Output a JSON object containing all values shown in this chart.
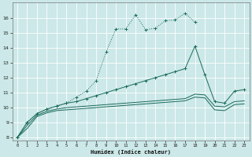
{
  "xlabel": "Humidex (Indice chaleur)",
  "background_color": "#cce8e8",
  "grid_color": "#b0d8d8",
  "line_color": "#1a6b5a",
  "xlim": [
    -0.5,
    23.5
  ],
  "ylim": [
    7.8,
    17.0
  ],
  "yticks": [
    8,
    9,
    10,
    11,
    12,
    13,
    14,
    15,
    16
  ],
  "xticks": [
    0,
    1,
    2,
    3,
    4,
    5,
    6,
    7,
    8,
    9,
    10,
    11,
    12,
    13,
    14,
    15,
    16,
    17,
    18,
    19,
    20,
    21,
    22,
    23
  ],
  "curve1_x": [
    0,
    1,
    2,
    3,
    4,
    5,
    6,
    7,
    8,
    9,
    10,
    11,
    12,
    13,
    14,
    15,
    16,
    17,
    18
  ],
  "curve1_y": [
    8.0,
    9.0,
    9.6,
    9.9,
    10.1,
    10.3,
    10.7,
    11.1,
    11.8,
    13.7,
    15.25,
    15.25,
    16.2,
    15.2,
    15.3,
    15.8,
    15.85,
    16.3,
    15.7
  ],
  "curve2_x": [
    0,
    1,
    2,
    3,
    4,
    5,
    6,
    7,
    8,
    9,
    10,
    11,
    12,
    13,
    14,
    15,
    16,
    17,
    18,
    19,
    20,
    21,
    22,
    23
  ],
  "curve2_y": [
    8.0,
    9.0,
    9.6,
    9.9,
    10.1,
    10.3,
    10.4,
    10.6,
    10.8,
    11.0,
    11.2,
    11.4,
    11.6,
    11.8,
    12.0,
    12.2,
    12.4,
    12.6,
    14.1,
    12.2,
    10.4,
    10.3,
    11.1,
    11.2
  ],
  "curve3_x": [
    0,
    1,
    2,
    3,
    4,
    5,
    6,
    7,
    8,
    9,
    10,
    11,
    12,
    13,
    14,
    15,
    16,
    17,
    18,
    19,
    20,
    21,
    22,
    23
  ],
  "curve3_y": [
    8.0,
    8.8,
    9.5,
    9.75,
    9.9,
    10.0,
    10.05,
    10.1,
    10.15,
    10.2,
    10.25,
    10.3,
    10.35,
    10.4,
    10.45,
    10.5,
    10.55,
    10.6,
    10.9,
    10.85,
    10.1,
    10.05,
    10.4,
    10.45
  ],
  "curve4_x": [
    0,
    1,
    2,
    3,
    4,
    5,
    6,
    7,
    8,
    9,
    10,
    11,
    12,
    13,
    14,
    15,
    16,
    17,
    18,
    19,
    20,
    21,
    22,
    23
  ],
  "curve4_y": [
    8.0,
    8.6,
    9.4,
    9.65,
    9.8,
    9.85,
    9.9,
    9.95,
    10.0,
    10.05,
    10.1,
    10.15,
    10.2,
    10.25,
    10.3,
    10.35,
    10.4,
    10.45,
    10.7,
    10.65,
    9.85,
    9.8,
    10.2,
    10.25
  ]
}
